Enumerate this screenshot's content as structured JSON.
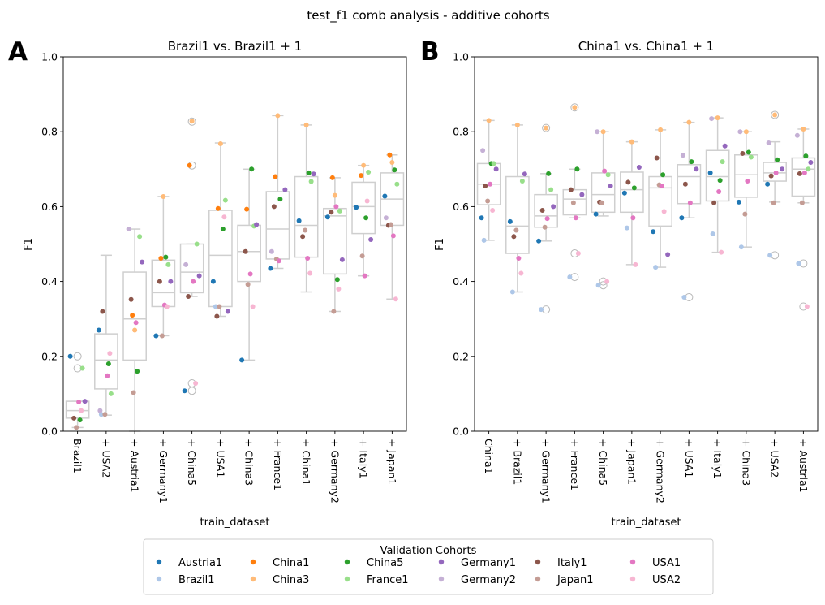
{
  "suptitle": "test_f1 comb analysis - additive cohorts",
  "legend": {
    "title": "Validation Cohorts",
    "entries": [
      {
        "name": "Austria1",
        "color": "#1f77b4"
      },
      {
        "name": "Brazil1",
        "color": "#aec7e8"
      },
      {
        "name": "China1",
        "color": "#ff7f0e"
      },
      {
        "name": "China3",
        "color": "#ffbb78"
      },
      {
        "name": "China5",
        "color": "#2ca02c"
      },
      {
        "name": "France1",
        "color": "#98df8a"
      },
      {
        "name": "Germany1",
        "color": "#9467bd"
      },
      {
        "name": "Germany2",
        "color": "#c5b0d5"
      },
      {
        "name": "Italy1",
        "color": "#8c564b"
      },
      {
        "name": "Japan1",
        "color": "#c49c94"
      },
      {
        "name": "USA1",
        "color": "#e377c2"
      },
      {
        "name": "USA2",
        "color": "#f7b6d2"
      }
    ]
  },
  "chart_data": [
    {
      "type": "box",
      "panel_letter": "A",
      "title": "Brazil1 vs. Brazil1 + 1",
      "xlabel": "train_dataset",
      "ylabel": "F1",
      "ylim": [
        0,
        1
      ],
      "yticks": [
        "0.0",
        "0.2",
        "0.4",
        "0.6",
        "0.8",
        "1.0"
      ],
      "categories": [
        "Brazil1",
        "+ USA2",
        "+ Austria1",
        "+ Germany1",
        "+ China5",
        "+ USA1",
        "+ China3",
        "+ France1",
        "+ China1",
        "+ Germany2",
        "+ Italy1",
        "+ Japan1"
      ],
      "boxes": [
        {
          "q1": 0.035,
          "median": 0.055,
          "q3": 0.08,
          "whislo": 0.01,
          "whishi": 0.08,
          "fliers": [
            0.2,
            0.168
          ]
        },
        {
          "q1": 0.113,
          "median": 0.19,
          "q3": 0.26,
          "whislo": 0.043,
          "whishi": 0.47,
          "fliers": []
        },
        {
          "q1": 0.19,
          "median": 0.3,
          "q3": 0.425,
          "whislo": 0.0,
          "whishi": 0.54,
          "fliers": []
        },
        {
          "q1": 0.333,
          "median": 0.37,
          "q3": 0.457,
          "whislo": 0.255,
          "whishi": 0.627,
          "fliers": []
        },
        {
          "q1": 0.37,
          "median": 0.425,
          "q3": 0.5,
          "whislo": 0.36,
          "whishi": 0.5,
          "fliers": [
            0.827,
            0.71,
            0.128,
            0.108
          ]
        },
        {
          "q1": 0.333,
          "median": 0.47,
          "q3": 0.59,
          "whislo": 0.307,
          "whishi": 0.77,
          "fliers": []
        },
        {
          "q1": 0.4,
          "median": 0.48,
          "q3": 0.55,
          "whislo": 0.19,
          "whishi": 0.7,
          "fliers": []
        },
        {
          "q1": 0.46,
          "median": 0.54,
          "q3": 0.64,
          "whislo": 0.435,
          "whishi": 0.843,
          "fliers": []
        },
        {
          "q1": 0.465,
          "median": 0.55,
          "q3": 0.68,
          "whislo": 0.372,
          "whishi": 0.818,
          "fliers": []
        },
        {
          "q1": 0.42,
          "median": 0.575,
          "q3": 0.595,
          "whislo": 0.32,
          "whishi": 0.677,
          "fliers": []
        },
        {
          "q1": 0.528,
          "median": 0.6,
          "q3": 0.665,
          "whislo": 0.415,
          "whishi": 0.71,
          "fliers": []
        },
        {
          "q1": 0.55,
          "median": 0.62,
          "q3": 0.69,
          "whislo": 0.353,
          "whishi": 0.738,
          "fliers": []
        }
      ],
      "points": [
        [
          0.2,
          0.0,
          0.0,
          0.0,
          0.03,
          0.168,
          0.08,
          0.0,
          0.035,
          0.01,
          0.078,
          0.055
        ],
        [
          0.27,
          0.045,
          0.0,
          0.0,
          0.18,
          0.1,
          0.0,
          0.055,
          0.32,
          0.045,
          0.148,
          0.208
        ],
        [
          0.0,
          0.0,
          0.31,
          0.27,
          0.16,
          0.52,
          0.452,
          0.54,
          0.352,
          0.103,
          0.29,
          0.0
        ],
        [
          0.255,
          0.0,
          0.462,
          0.627,
          0.465,
          0.445,
          0.4,
          0.0,
          0.4,
          0.255,
          0.337,
          0.333
        ],
        [
          0.108,
          0.0,
          0.71,
          0.828,
          0.0,
          0.5,
          0.415,
          0.445,
          0.36,
          0.0,
          0.4,
          0.128
        ],
        [
          0.4,
          0.333,
          0.595,
          0.768,
          0.54,
          0.617,
          0.32,
          0.0,
          0.307,
          0.333,
          0.0,
          0.572
        ],
        [
          0.19,
          0.0,
          0.593,
          0.0,
          0.7,
          0.548,
          0.552,
          0.0,
          0.48,
          0.392,
          0.42,
          0.333
        ],
        [
          0.435,
          0.0,
          0.68,
          0.843,
          0.62,
          0.0,
          0.645,
          0.48,
          0.6,
          0.46,
          0.455,
          0.0
        ],
        [
          0.562,
          0.0,
          0.0,
          0.818,
          0.69,
          0.667,
          0.687,
          0.0,
          0.52,
          0.537,
          0.462,
          0.422
        ],
        [
          0.572,
          0.0,
          0.677,
          0.63,
          0.405,
          0.588,
          0.458,
          0.0,
          0.585,
          0.32,
          0.6,
          0.38
        ],
        [
          0.598,
          0.0,
          0.683,
          0.71,
          0.57,
          0.692,
          0.512,
          0.0,
          0.0,
          0.468,
          0.415,
          0.615
        ],
        [
          0.628,
          0.0,
          0.738,
          0.718,
          0.698,
          0.66,
          0.0,
          0.57,
          0.55,
          0.552,
          0.522,
          0.353
        ]
      ]
    },
    {
      "type": "box",
      "panel_letter": "B",
      "title": "China1 vs. China1 + 1",
      "xlabel": "train_dataset",
      "ylabel": "F1",
      "ylim": [
        0,
        1
      ],
      "yticks": [
        "0.0",
        "0.2",
        "0.4",
        "0.6",
        "0.8",
        "1.0"
      ],
      "categories": [
        "China1",
        "+ Brazil1",
        "+ Germany1",
        "+ France1",
        "+ China5",
        "+ Japan1",
        "+ Germany2",
        "+ USA1",
        "+ Italy1",
        "+ China3",
        "+ USA2",
        "+ Austria1"
      ],
      "boxes": [
        {
          "q1": 0.605,
          "median": 0.66,
          "q3": 0.715,
          "whislo": 0.51,
          "whishi": 0.83,
          "fliers": []
        },
        {
          "q1": 0.475,
          "median": 0.548,
          "q3": 0.68,
          "whislo": 0.372,
          "whishi": 0.818,
          "fliers": []
        },
        {
          "q1": 0.545,
          "median": 0.575,
          "q3": 0.632,
          "whislo": 0.508,
          "whishi": 0.688,
          "fliers": [
            0.81,
            0.325
          ]
        },
        {
          "q1": 0.578,
          "median": 0.62,
          "q3": 0.645,
          "whislo": 0.57,
          "whishi": 0.7,
          "fliers": [
            0.865,
            0.475,
            0.412
          ]
        },
        {
          "q1": 0.585,
          "median": 0.632,
          "q3": 0.69,
          "whislo": 0.575,
          "whishi": 0.8,
          "fliers": [
            0.4,
            0.39
          ]
        },
        {
          "q1": 0.585,
          "median": 0.645,
          "q3": 0.692,
          "whislo": 0.445,
          "whishi": 0.773,
          "fliers": []
        },
        {
          "q1": 0.548,
          "median": 0.65,
          "q3": 0.68,
          "whislo": 0.438,
          "whishi": 0.805,
          "fliers": []
        },
        {
          "q1": 0.608,
          "median": 0.68,
          "q3": 0.712,
          "whislo": 0.57,
          "whishi": 0.825,
          "fliers": [
            0.358
          ]
        },
        {
          "q1": 0.615,
          "median": 0.68,
          "q3": 0.75,
          "whislo": 0.478,
          "whishi": 0.837,
          "fliers": []
        },
        {
          "q1": 0.625,
          "median": 0.685,
          "q3": 0.738,
          "whislo": 0.492,
          "whishi": 0.8,
          "fliers": []
        },
        {
          "q1": 0.668,
          "median": 0.69,
          "q3": 0.718,
          "whislo": 0.612,
          "whishi": 0.773,
          "fliers": [
            0.845,
            0.47
          ]
        },
        {
          "q1": 0.628,
          "median": 0.7,
          "q3": 0.73,
          "whislo": 0.61,
          "whishi": 0.807,
          "fliers": [
            0.448,
            0.333
          ]
        }
      ],
      "points": [
        [
          0.57,
          0.51,
          0.0,
          0.83,
          0.715,
          0.715,
          0.7,
          0.75,
          0.655,
          0.615,
          0.66,
          0.59
        ],
        [
          0.56,
          0.372,
          0.0,
          0.818,
          0.0,
          0.668,
          0.687,
          0.0,
          0.52,
          0.537,
          0.462,
          0.422
        ],
        [
          0.508,
          0.325,
          0.0,
          0.81,
          0.688,
          0.645,
          0.6,
          0.0,
          0.59,
          0.545,
          0.568,
          0.0
        ],
        [
          0.0,
          0.412,
          0.0,
          0.865,
          0.7,
          0.0,
          0.632,
          0.0,
          0.645,
          0.61,
          0.57,
          0.475
        ],
        [
          0.58,
          0.39,
          0.0,
          0.8,
          0.0,
          0.685,
          0.655,
          0.8,
          0.612,
          0.61,
          0.695,
          0.4
        ],
        [
          0.636,
          0.543,
          0.0,
          0.773,
          0.65,
          0.0,
          0.705,
          0.0,
          0.665,
          0.0,
          0.57,
          0.445
        ],
        [
          0.533,
          0.438,
          0.0,
          0.805,
          0.685,
          0.0,
          0.472,
          0.0,
          0.73,
          0.658,
          0.655,
          0.587
        ],
        [
          0.57,
          0.358,
          0.0,
          0.825,
          0.72,
          0.0,
          0.7,
          0.737,
          0.66,
          0.0,
          0.61,
          0.0
        ],
        [
          0.69,
          0.527,
          0.0,
          0.837,
          0.67,
          0.72,
          0.762,
          0.835,
          0.61,
          0.0,
          0.64,
          0.478
        ],
        [
          0.612,
          0.492,
          0.0,
          0.8,
          0.745,
          0.732,
          0.0,
          0.8,
          0.742,
          0.58,
          0.668,
          0.0
        ],
        [
          0.66,
          0.47,
          0.0,
          0.845,
          0.725,
          0.0,
          0.7,
          0.77,
          0.682,
          0.61,
          0.69,
          0.0
        ],
        [
          0.0,
          0.448,
          0.0,
          0.807,
          0.735,
          0.7,
          0.718,
          0.79,
          0.688,
          0.61,
          0.69,
          0.333
        ]
      ]
    }
  ]
}
